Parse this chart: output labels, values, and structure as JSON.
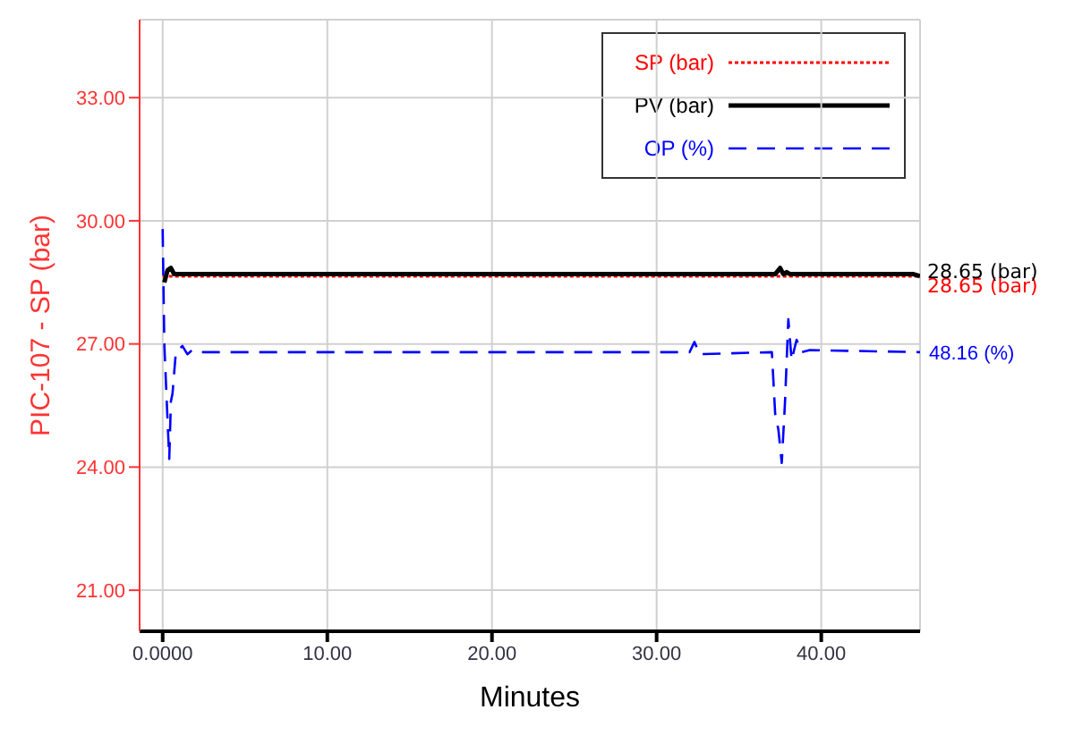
{
  "chart_data": {
    "type": "line",
    "xlabel": "Minutes",
    "ylabel": "PIC-107 - SP (bar)",
    "xlim": [
      -1.4,
      46
    ],
    "ylim": [
      20,
      34.9
    ],
    "xticks": [
      {
        "value": 0,
        "label": "0.0000"
      },
      {
        "value": 10,
        "label": "10.00"
      },
      {
        "value": 20,
        "label": "20.00"
      },
      {
        "value": 30,
        "label": "30.00"
      },
      {
        "value": 40,
        "label": "40.00"
      }
    ],
    "yticks": [
      {
        "value": 21,
        "label": "21.00"
      },
      {
        "value": 24,
        "label": "24.00"
      },
      {
        "value": 27,
        "label": "27.00"
      },
      {
        "value": 30,
        "label": "30.00"
      },
      {
        "value": 33,
        "label": "33.00"
      }
    ],
    "grid": true,
    "legend": "top right",
    "marker": "none",
    "series": [
      {
        "name": "SP (bar)",
        "color": "#ff0000",
        "line_style": "dotted",
        "x": [
          0,
          46
        ],
        "values": [
          28.65,
          28.65
        ],
        "value_labels": [
          null,
          "28.65 (bar)"
        ]
      },
      {
        "name": "PV (bar)",
        "color": "#000000",
        "line_style": "solid",
        "x": [
          0.1,
          0.3,
          0.5,
          0.7,
          37.2,
          37.5,
          37.7,
          37.9,
          38.1,
          45.6,
          46
        ],
        "values": [
          28.5,
          28.8,
          28.85,
          28.7,
          28.7,
          28.85,
          28.7,
          28.75,
          28.7,
          28.7,
          28.65
        ],
        "value_labels": [
          null,
          null,
          null,
          null,
          null,
          null,
          null,
          null,
          null,
          null,
          "28.65 (bar)"
        ]
      },
      {
        "name": "OP (%)",
        "color": "#0000ff",
        "line_style": "dashed",
        "x": [
          0,
          0.1,
          0.3,
          0.4,
          0.5,
          0.6,
          0.8,
          1.2,
          1.5,
          1.8,
          2.2,
          3,
          32,
          32.3,
          32.6,
          37,
          37.2,
          37.4,
          37.6,
          37.8,
          38,
          38.2,
          38.5,
          38.8,
          39.3,
          46
        ],
        "values": [
          29.8,
          27,
          25.1,
          24.2,
          25.6,
          25.8,
          26.8,
          26.95,
          26.75,
          26.85,
          26.8,
          26.8,
          26.8,
          27.05,
          26.75,
          26.8,
          25.3,
          24.9,
          24.1,
          25.6,
          27.6,
          26.6,
          27.1,
          26.8,
          26.85,
          26.8
        ]
      }
    ],
    "annotations": [
      {
        "text": "48.16 (%)",
        "x": 46,
        "y": 26.8
      }
    ]
  }
}
